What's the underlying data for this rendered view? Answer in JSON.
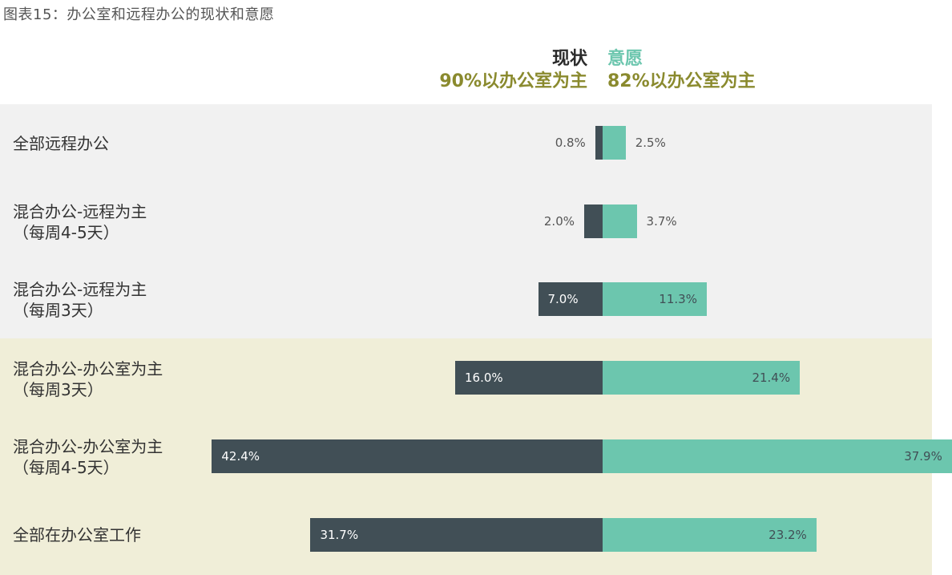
{
  "title": "图表15：办公室和远程办公的现状和意愿",
  "colors": {
    "current": "#414f56",
    "desired": "#6cc6ae",
    "subtitle": "#8a8a2e",
    "current_head": "#2b2b2b",
    "desired_head": "#6cc6ae"
  },
  "legend": {
    "current": {
      "name": "现状",
      "subtitle": "90%以办公室为主"
    },
    "desired": {
      "name": "意愿",
      "subtitle": "82%以办公室为主"
    }
  },
  "chart_data": {
    "type": "bar",
    "orientation": "diverging-horizontal",
    "categories": [
      "全部远程办公",
      "混合办公-远程为主（每周4-5天）",
      "混合办公-远程为主（每周3天）",
      "混合办公-办公室为主（每周3天）",
      "混合办公-办公室为主（每周4-5天）",
      "全部在办公室工作"
    ],
    "series": [
      {
        "name": "现状",
        "values": [
          0.8,
          2.0,
          7.0,
          16.0,
          42.4,
          31.7
        ],
        "labels": [
          "0.8%",
          "2.0%",
          "7.0%",
          "16.0%",
          "42.4%",
          "31.7%"
        ]
      },
      {
        "name": "意愿",
        "values": [
          2.5,
          3.7,
          11.3,
          21.4,
          37.9,
          23.2
        ],
        "labels": [
          "2.5%",
          "3.7%",
          "11.3%",
          "21.4%",
          "37.9%",
          "23.2%"
        ]
      }
    ],
    "groups": [
      {
        "name": "remote",
        "categories": [
          0,
          1,
          2
        ]
      },
      {
        "name": "office",
        "categories": [
          3,
          4,
          5
        ]
      }
    ],
    "unit": "%"
  },
  "rows": [
    {
      "line1": "全部远程办公",
      "line2": ""
    },
    {
      "line1": "混合办公-远程为主",
      "line2": "（每周4-5天）"
    },
    {
      "line1": "混合办公-远程为主",
      "line2": "（每周3天）"
    },
    {
      "line1": "混合办公-办公室为主",
      "line2": "（每周3天）"
    },
    {
      "line1": "混合办公-办公室为主",
      "line2": "（每周4-5天）"
    },
    {
      "line1": "全部在办公室工作",
      "line2": ""
    }
  ]
}
